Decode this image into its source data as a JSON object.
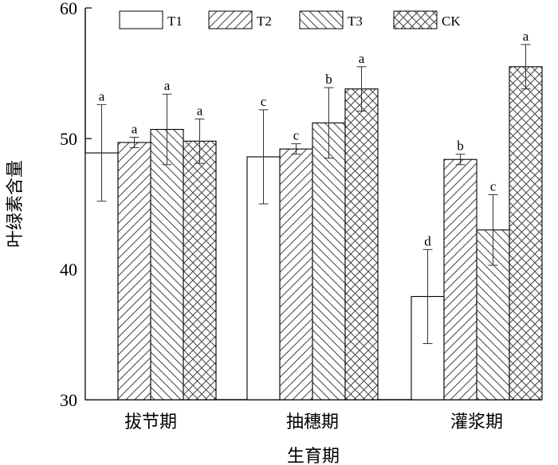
{
  "chart_data": {
    "type": "bar",
    "title": "",
    "xlabel": "生育期",
    "ylabel": "叶绿素含量",
    "ylim": [
      30,
      60
    ],
    "yticks": [
      30,
      40,
      50,
      60
    ],
    "grid": false,
    "legend_position": "top",
    "categories": [
      "拔节期",
      "抽穗期",
      "灌浆期"
    ],
    "series": [
      {
        "name": "T1",
        "values": [
          48.9,
          48.6,
          37.9
        ],
        "errors": [
          3.7,
          3.6,
          3.6
        ],
        "labels": [
          "a",
          "c",
          "d"
        ],
        "pattern": "none"
      },
      {
        "name": "T2",
        "values": [
          49.7,
          49.2,
          48.4
        ],
        "errors": [
          0.4,
          0.4,
          0.4
        ],
        "labels": [
          "a",
          "c",
          "b"
        ],
        "pattern": "forward-diagonal"
      },
      {
        "name": "T3",
        "values": [
          50.7,
          51.2,
          43.0
        ],
        "errors": [
          2.7,
          2.7,
          2.7
        ],
        "labels": [
          "a",
          "b",
          "c"
        ],
        "pattern": "backward-diagonal"
      },
      {
        "name": "CK",
        "values": [
          49.8,
          53.8,
          55.5
        ],
        "errors": [
          1.7,
          1.7,
          1.7
        ],
        "labels": [
          "a",
          "a",
          "a"
        ],
        "pattern": "crosshatch"
      }
    ]
  }
}
